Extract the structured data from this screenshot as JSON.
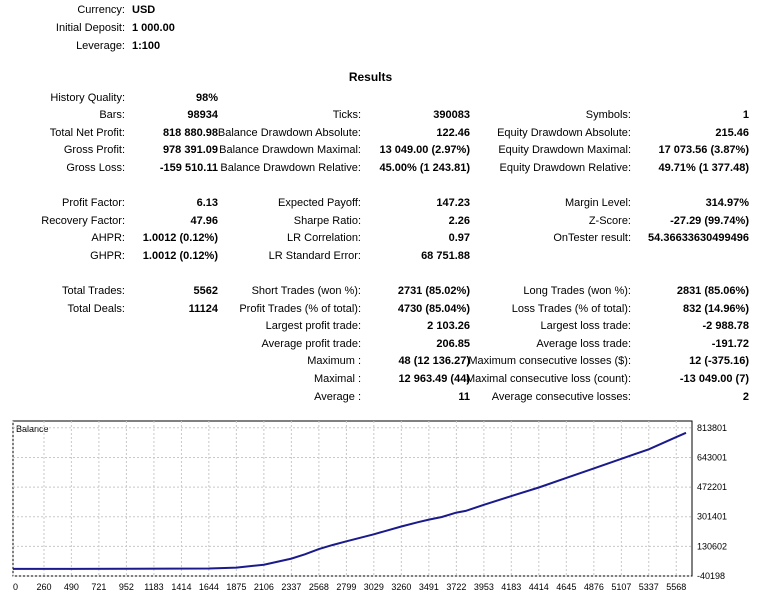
{
  "header": [
    {
      "label": "Currency:",
      "value": "USD"
    },
    {
      "label": "Initial Deposit:",
      "value": "1 000.00"
    },
    {
      "label": "Leverage:",
      "value": "1:100"
    }
  ],
  "results_title": "Results",
  "history_quality": {
    "label": "History Quality:",
    "value": "98%"
  },
  "rows": [
    [
      {
        "label": "Bars:",
        "value": "98934"
      },
      {
        "label": "Ticks:",
        "value": "390083"
      },
      {
        "label": "Symbols:",
        "value": "1"
      }
    ],
    [
      {
        "label": "Total Net Profit:",
        "value": "818 880.98"
      },
      {
        "label": "Balance Drawdown Absolute:",
        "value": "122.46"
      },
      {
        "label": "Equity Drawdown Absolute:",
        "value": "215.46"
      }
    ],
    [
      {
        "label": "Gross Profit:",
        "value": "978 391.09"
      },
      {
        "label": "Balance Drawdown Maximal:",
        "value": "13 049.00 (2.97%)"
      },
      {
        "label": "Equity Drawdown Maximal:",
        "value": "17 073.56 (3.87%)"
      }
    ],
    [
      {
        "label": "Gross Loss:",
        "value": "-159 510.11"
      },
      {
        "label": "Balance Drawdown Relative:",
        "value": "45.00% (1 243.81)"
      },
      {
        "label": "Equity Drawdown Relative:",
        "value": "49.71% (1 377.48)"
      }
    ],
    null,
    [
      {
        "label": "Profit Factor:",
        "value": "6.13"
      },
      {
        "label": "Expected Payoff:",
        "value": "147.23"
      },
      {
        "label": "Margin Level:",
        "value": "314.97%"
      }
    ],
    [
      {
        "label": "Recovery Factor:",
        "value": "47.96"
      },
      {
        "label": "Sharpe Ratio:",
        "value": "2.26"
      },
      {
        "label": "Z-Score:",
        "value": "-27.29 (99.74%)"
      }
    ],
    [
      {
        "label": "AHPR:",
        "value": "1.0012 (0.12%)"
      },
      {
        "label": "LR Correlation:",
        "value": "0.97"
      },
      {
        "label": "OnTester result:",
        "value": "54.36633630499496"
      }
    ],
    [
      {
        "label": "GHPR:",
        "value": "1.0012 (0.12%)"
      },
      {
        "label": "LR Standard Error:",
        "value": "68 751.88"
      },
      null
    ],
    null,
    [
      {
        "label": "Total Trades:",
        "value": "5562"
      },
      {
        "label": "Short Trades (won %):",
        "value": "2731 (85.02%)"
      },
      {
        "label": "Long Trades (won %):",
        "value": "2831 (85.06%)"
      }
    ],
    [
      {
        "label": "Total Deals:",
        "value": "11124"
      },
      {
        "label": "Profit Trades (% of total):",
        "value": "4730 (85.04%)"
      },
      {
        "label": "Loss Trades (% of total):",
        "value": "832 (14.96%)"
      }
    ],
    [
      null,
      {
        "label": "Largest profit trade:",
        "value": "2 103.26"
      },
      {
        "label": "Largest loss trade:",
        "value": "-2 988.78"
      }
    ],
    [
      null,
      {
        "label": "Average profit trade:",
        "value": "206.85"
      },
      {
        "label": "Average loss trade:",
        "value": "-191.72"
      }
    ],
    [
      null,
      {
        "label": "Maximum :",
        "value": "48 (12 136.27)"
      },
      {
        "label": "Maximum consecutive losses ($):",
        "value": "12 (-375.16)"
      }
    ],
    [
      null,
      {
        "label": "Maximal :",
        "value": "12 963.49 (44)"
      },
      {
        "label": "Maximal consecutive loss (count):",
        "value": "-13 049.00 (7)"
      }
    ],
    [
      null,
      {
        "label": "Average :",
        "value": "11"
      },
      {
        "label": "Average consecutive losses:",
        "value": "2"
      }
    ]
  ],
  "chart_data": {
    "type": "line",
    "title": "Balance",
    "x_ticks": [
      "0",
      "260",
      "490",
      "721",
      "952",
      "1183",
      "1414",
      "1644",
      "1875",
      "2106",
      "2337",
      "2568",
      "2799",
      "3029",
      "3260",
      "3491",
      "3722",
      "3953",
      "4183",
      "4414",
      "4645",
      "4876",
      "5107",
      "5337",
      "5568"
    ],
    "y_ticks": [
      "813801",
      "643001",
      "472201",
      "301401",
      "130602",
      "-40198"
    ],
    "xlim": [
      0,
      5700
    ],
    "ylim": [
      -40198,
      853000
    ],
    "series": [
      {
        "color": "#1a1a8c",
        "points": [
          [
            0,
            1000
          ],
          [
            500,
            1000
          ],
          [
            1000,
            1500
          ],
          [
            1644,
            3000
          ],
          [
            1875,
            8000
          ],
          [
            2106,
            25000
          ],
          [
            2337,
            60000
          ],
          [
            2450,
            85000
          ],
          [
            2568,
            115000
          ],
          [
            2680,
            138000
          ],
          [
            2799,
            160000
          ],
          [
            3029,
            200000
          ],
          [
            3260,
            245000
          ],
          [
            3400,
            270000
          ],
          [
            3491,
            285000
          ],
          [
            3600,
            300000
          ],
          [
            3722,
            325000
          ],
          [
            3800,
            335000
          ],
          [
            3953,
            370000
          ],
          [
            4183,
            420000
          ],
          [
            4414,
            470000
          ],
          [
            4645,
            525000
          ],
          [
            4876,
            580000
          ],
          [
            5107,
            635000
          ],
          [
            5337,
            690000
          ],
          [
            5568,
            760000
          ],
          [
            5650,
            785000
          ]
        ]
      }
    ]
  }
}
